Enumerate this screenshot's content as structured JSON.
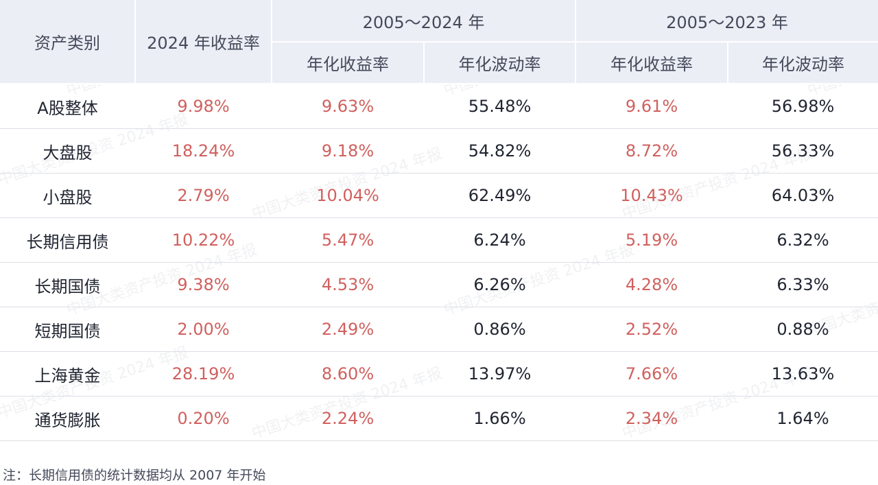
{
  "table": {
    "header": {
      "asset_class": "资产类别",
      "return_2024": "2024 年收益率",
      "group_a": "2005～2024 年",
      "group_b": "2005～2023 年",
      "annual_return": "年化收益率",
      "annual_volatility": "年化波动率"
    },
    "rows": [
      {
        "asset": "A股整体",
        "r2024": "9.98%",
        "a_ret": "9.63%",
        "a_vol": "55.48%",
        "b_ret": "9.61%",
        "b_vol": "56.98%"
      },
      {
        "asset": "大盘股",
        "r2024": "18.24%",
        "a_ret": "9.18%",
        "a_vol": "54.82%",
        "b_ret": "8.72%",
        "b_vol": "56.33%"
      },
      {
        "asset": "小盘股",
        "r2024": "2.79%",
        "a_ret": "10.04%",
        "a_vol": "62.49%",
        "b_ret": "10.43%",
        "b_vol": "64.03%"
      },
      {
        "asset": "长期信用债",
        "r2024": "10.22%",
        "a_ret": "5.47%",
        "a_vol": "6.24%",
        "b_ret": "5.19%",
        "b_vol": "6.32%"
      },
      {
        "asset": "长期国债",
        "r2024": "9.38%",
        "a_ret": "4.53%",
        "a_vol": "6.26%",
        "b_ret": "4.28%",
        "b_vol": "6.33%"
      },
      {
        "asset": "短期国债",
        "r2024": "2.00%",
        "a_ret": "2.49%",
        "a_vol": "0.86%",
        "b_ret": "2.52%",
        "b_vol": "0.88%"
      },
      {
        "asset": "上海黄金",
        "r2024": "28.19%",
        "a_ret": "8.60%",
        "a_vol": "13.97%",
        "b_ret": "7.66%",
        "b_vol": "13.63%"
      },
      {
        "asset": "通货膨胀",
        "r2024": "0.20%",
        "a_ret": "2.24%",
        "a_vol": "1.66%",
        "b_ret": "2.34%",
        "b_vol": "1.64%"
      }
    ]
  },
  "watermark": "中国大类资产投资 2024 年报",
  "note": "注：长期信用债的统计数据均从 2007 年开始",
  "colors": {
    "header_bg": "#eceef6",
    "return_text": "#d0605e",
    "body_text": "#1f2430",
    "row_divider": "#dddfe6"
  }
}
